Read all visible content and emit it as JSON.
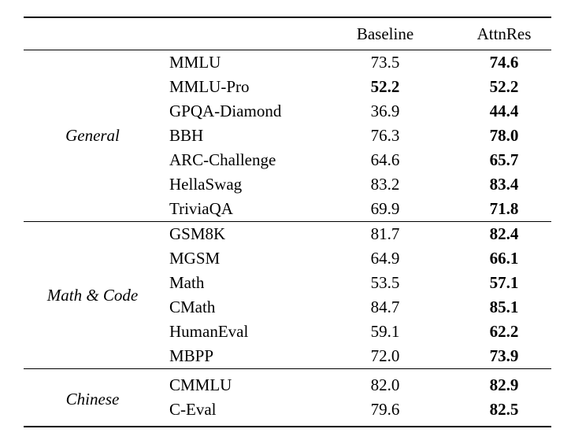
{
  "page": {
    "background_color": "#ffffff",
    "text_color": "#000000"
  },
  "table": {
    "header": {
      "baseline": "Baseline",
      "attnres": "AttnRes"
    },
    "sections": [
      {
        "category": "General",
        "rows": [
          {
            "benchmark": "MMLU",
            "baseline": "73.5",
            "attnres": "74.6",
            "baseline_bold": false,
            "attnres_bold": true
          },
          {
            "benchmark": "MMLU-Pro",
            "baseline": "52.2",
            "attnres": "52.2",
            "baseline_bold": true,
            "attnres_bold": true
          },
          {
            "benchmark": "GPQA-Diamond",
            "baseline": "36.9",
            "attnres": "44.4",
            "baseline_bold": false,
            "attnres_bold": true
          },
          {
            "benchmark": "BBH",
            "baseline": "76.3",
            "attnres": "78.0",
            "baseline_bold": false,
            "attnres_bold": true
          },
          {
            "benchmark": "ARC-Challenge",
            "baseline": "64.6",
            "attnres": "65.7",
            "baseline_bold": false,
            "attnres_bold": true
          },
          {
            "benchmark": "HellaSwag",
            "baseline": "83.2",
            "attnres": "83.4",
            "baseline_bold": false,
            "attnres_bold": true
          },
          {
            "benchmark": "TriviaQA",
            "baseline": "69.9",
            "attnres": "71.8",
            "baseline_bold": false,
            "attnres_bold": true
          }
        ]
      },
      {
        "category": "Math & Code",
        "rows": [
          {
            "benchmark": "GSM8K",
            "baseline": "81.7",
            "attnres": "82.4",
            "baseline_bold": false,
            "attnres_bold": true
          },
          {
            "benchmark": "MGSM",
            "baseline": "64.9",
            "attnres": "66.1",
            "baseline_bold": false,
            "attnres_bold": true
          },
          {
            "benchmark": "Math",
            "baseline": "53.5",
            "attnres": "57.1",
            "baseline_bold": false,
            "attnres_bold": true
          },
          {
            "benchmark": "CMath",
            "baseline": "84.7",
            "attnres": "85.1",
            "baseline_bold": false,
            "attnres_bold": true
          },
          {
            "benchmark": "HumanEval",
            "baseline": "59.1",
            "attnres": "62.2",
            "baseline_bold": false,
            "attnres_bold": true
          },
          {
            "benchmark": "MBPP",
            "baseline": "72.0",
            "attnres": "73.9",
            "baseline_bold": false,
            "attnres_bold": true
          }
        ]
      },
      {
        "category": "Chinese",
        "rows": [
          {
            "benchmark": "CMMLU",
            "baseline": "82.0",
            "attnres": "82.9",
            "baseline_bold": false,
            "attnres_bold": true
          },
          {
            "benchmark": "C-Eval",
            "baseline": "79.6",
            "attnres": "82.5",
            "baseline_bold": false,
            "attnres_bold": true
          }
        ]
      }
    ]
  }
}
